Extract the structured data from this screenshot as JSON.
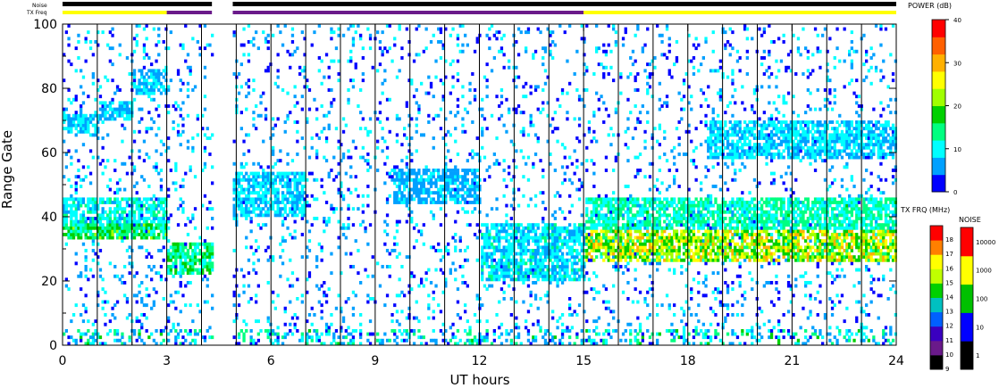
{
  "chart_data": {
    "type": "heatmap",
    "title": "",
    "xlabel": "UT hours",
    "ylabel": "Range Gate",
    "xlim": [
      0,
      24
    ],
    "ylim": [
      0,
      100
    ],
    "x_ticks": [
      0,
      3,
      6,
      9,
      12,
      15,
      18,
      21,
      24
    ],
    "x_tick_labels": [
      "0",
      "3",
      "6",
      "9",
      "12",
      "15",
      "18",
      "21",
      "24"
    ],
    "y_ticks": [
      0,
      20,
      40,
      60,
      80,
      100
    ],
    "y_tick_labels": [
      "0",
      "20",
      "40",
      "60",
      "80",
      "100"
    ],
    "hour_gridlines": true,
    "data_gaps": [
      [
        4.3,
        4.9
      ]
    ],
    "noise_bar": {
      "label": "Noise",
      "segments": [
        {
          "start": 0,
          "end": 4.3,
          "color": "#000000"
        },
        {
          "start": 4.9,
          "end": 24,
          "color": "#000000"
        }
      ]
    },
    "freq_bar": {
      "label": "TX Freq",
      "segments": [
        {
          "start": 0,
          "end": 3.0,
          "color": "#ffff00"
        },
        {
          "start": 3.0,
          "end": 4.3,
          "color": "#6a1a8a"
        },
        {
          "start": 4.9,
          "end": 15.0,
          "color": "#6a1a8a"
        },
        {
          "start": 15.0,
          "end": 24,
          "color": "#ffff00"
        }
      ]
    },
    "echo_bands": [
      {
        "t0": 0,
        "t1": 3.0,
        "g0": 33,
        "g1": 38,
        "peak_db": 18
      },
      {
        "t0": 0,
        "t1": 3.0,
        "g0": 36,
        "g1": 46,
        "peak_db": 12
      },
      {
        "t0": 0,
        "t1": 1.0,
        "g0": 66,
        "g1": 72,
        "peak_db": 10
      },
      {
        "t0": 1.0,
        "t1": 2.0,
        "g0": 70,
        "g1": 76,
        "peak_db": 9
      },
      {
        "t0": 2.0,
        "t1": 3.0,
        "g0": 78,
        "g1": 86,
        "peak_db": 9
      },
      {
        "t0": 3.0,
        "t1": 4.3,
        "g0": 22,
        "g1": 32,
        "peak_db": 16
      },
      {
        "t0": 4.9,
        "t1": 7.0,
        "g0": 40,
        "g1": 54,
        "peak_db": 10
      },
      {
        "t0": 9.5,
        "t1": 12.0,
        "g0": 44,
        "g1": 55,
        "peak_db": 8
      },
      {
        "t0": 12.0,
        "t1": 15.0,
        "g0": 20,
        "g1": 38,
        "peak_db": 11
      },
      {
        "t0": 15.0,
        "t1": 24,
        "g0": 26,
        "g1": 36,
        "peak_db": 26
      },
      {
        "t0": 15.0,
        "t1": 24,
        "g0": 36,
        "g1": 46,
        "peak_db": 14
      },
      {
        "t0": 18.5,
        "t1": 24,
        "g0": 58,
        "g1": 70,
        "peak_db": 10
      }
    ],
    "scatter_density": {
      "background_echo_fraction": 0.1,
      "near_range_clutter_gates": [
        0,
        4
      ]
    },
    "legends": {
      "power": {
        "title": "POWER (dB)",
        "min": 0,
        "max": 40,
        "ticks": [
          0,
          10,
          20,
          30,
          40
        ],
        "colors": [
          "#0000ff",
          "#00a0ff",
          "#00ffff",
          "#00ff80",
          "#00d000",
          "#a0ff00",
          "#ffff00",
          "#ffb000",
          "#ff6000",
          "#ff0000"
        ]
      },
      "tx_freq": {
        "title": "TX FRQ (MHz)",
        "values": [
          9,
          10,
          11,
          12,
          13,
          14,
          15,
          16,
          17,
          18
        ],
        "colors": [
          "#000000",
          "#6a1a8a",
          "#3a00c0",
          "#0060ff",
          "#00c0c0",
          "#00d000",
          "#c0ff00",
          "#ffff00",
          "#ff8000",
          "#ff0000"
        ]
      },
      "noise": {
        "title": "NOISE",
        "values": [
          1,
          10,
          100,
          1000,
          10000
        ],
        "colors": [
          "#000000",
          "#0000ff",
          "#00c000",
          "#ffff00",
          "#ff0000"
        ]
      }
    }
  }
}
